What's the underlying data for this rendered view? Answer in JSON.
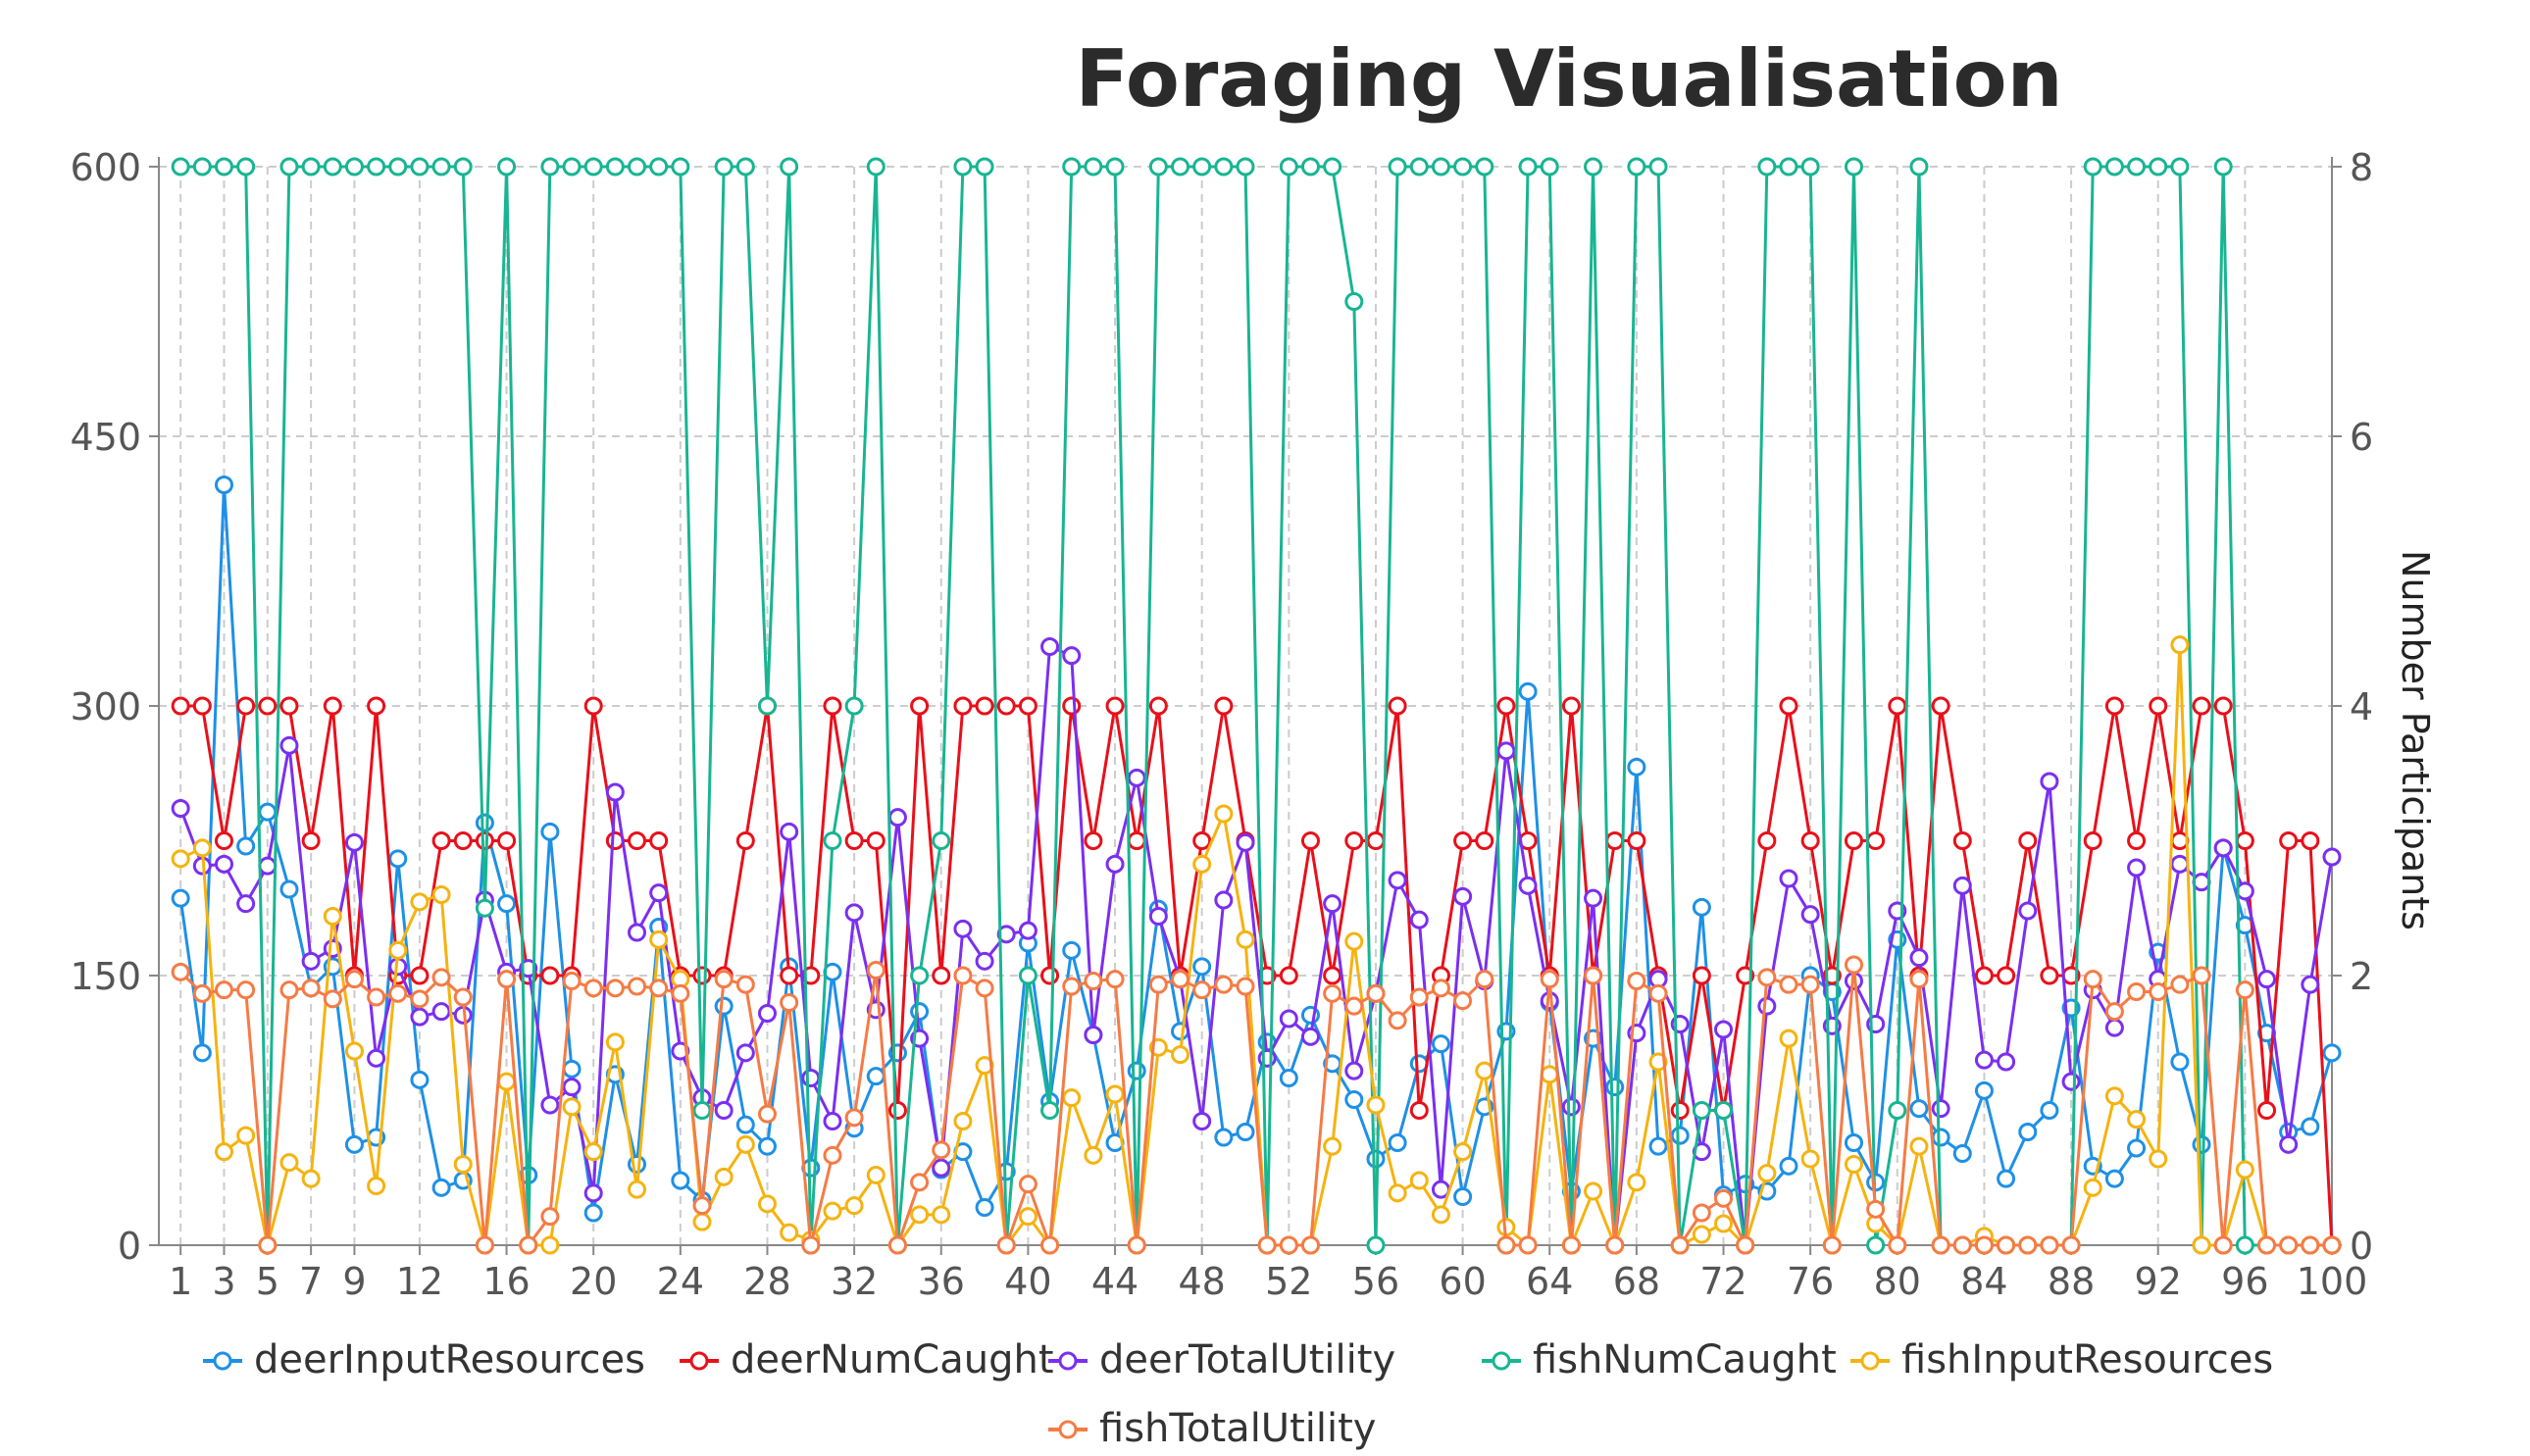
{
  "chart_data": {
    "type": "line",
    "title": "Foraging Visualisation",
    "xlabel": "",
    "ylabel_left": "",
    "ylabel_right": "Number Participants",
    "x": [
      1,
      2,
      3,
      4,
      5,
      6,
      7,
      8,
      9,
      10,
      11,
      12,
      13,
      14,
      15,
      16,
      17,
      18,
      19,
      20,
      21,
      22,
      23,
      24,
      25,
      26,
      27,
      28,
      29,
      30,
      31,
      32,
      33,
      34,
      35,
      36,
      37,
      38,
      39,
      40,
      41,
      42,
      43,
      44,
      45,
      46,
      47,
      48,
      49,
      50,
      51,
      52,
      53,
      54,
      55,
      56,
      57,
      58,
      59,
      60,
      61,
      62,
      63,
      64,
      65,
      66,
      67,
      68,
      69,
      70,
      71,
      72,
      73,
      74,
      75,
      76,
      77,
      78,
      79,
      80,
      81,
      82,
      83,
      84,
      85,
      86,
      87,
      88,
      89,
      90,
      91,
      92,
      93,
      94,
      95,
      96,
      97,
      98,
      99,
      100
    ],
    "x_tick_labels": [
      "1",
      "3",
      "5",
      "7",
      "9",
      "12",
      "16",
      "20",
      "24",
      "28",
      "32",
      "36",
      "40",
      "44",
      "48",
      "52",
      "56",
      "60",
      "64",
      "68",
      "72",
      "76",
      "80",
      "84",
      "88",
      "92",
      "96",
      "100"
    ],
    "x_tick_values": [
      1,
      3,
      5,
      7,
      9,
      12,
      16,
      20,
      24,
      28,
      32,
      36,
      40,
      44,
      48,
      52,
      56,
      60,
      64,
      68,
      72,
      76,
      80,
      84,
      88,
      92,
      96,
      100
    ],
    "xlim": [
      0,
      100
    ],
    "y_left": {
      "ticks": [
        0,
        150,
        300,
        450,
        600
      ],
      "ylim": [
        0,
        600
      ]
    },
    "y_right": {
      "ticks": [
        0,
        2,
        4,
        6,
        8
      ],
      "ylim": [
        0,
        8
      ]
    },
    "grid": true,
    "legend_position": "bottom",
    "series": [
      {
        "name": "deerInputResources",
        "color": "#1e90e6",
        "axis": "left",
        "values": [
          193,
          107,
          423,
          222,
          241,
          198,
          143,
          155,
          56,
          60,
          215,
          92,
          32,
          36,
          235,
          190,
          39,
          230,
          98,
          18,
          95,
          45,
          177,
          36,
          25,
          133,
          67,
          55,
          155,
          43,
          152,
          65,
          94,
          107,
          130,
          42,
          52,
          21,
          41,
          168,
          80,
          164,
          117,
          57,
          97,
          187,
          119,
          155,
          60,
          63,
          113,
          93,
          128,
          101,
          81,
          48,
          57,
          101,
          112,
          27,
          77,
          119,
          308,
          135,
          30,
          115,
          88,
          266,
          55,
          61,
          188,
          28,
          34,
          30,
          44,
          150,
          141,
          57,
          35,
          170,
          76,
          60,
          51,
          86,
          37,
          63,
          75,
          132,
          44,
          37,
          54,
          163,
          102,
          56,
          221,
          178,
          118,
          63,
          66,
          107
        ]
      },
      {
        "name": "deerNumCaught",
        "color": "#e8101a",
        "axis": "left",
        "values": [
          300,
          300,
          225,
          300,
          300,
          300,
          225,
          300,
          150,
          300,
          150,
          150,
          225,
          225,
          225,
          225,
          150,
          150,
          150,
          300,
          225,
          225,
          225,
          150,
          150,
          150,
          225,
          300,
          150,
          150,
          300,
          225,
          225,
          75,
          300,
          150,
          300,
          300,
          300,
          300,
          150,
          300,
          225,
          300,
          225,
          300,
          150,
          225,
          300,
          225,
          150,
          150,
          225,
          150,
          225,
          225,
          300,
          75,
          150,
          225,
          225,
          300,
          225,
          150,
          300,
          150,
          225,
          225,
          150,
          75,
          150,
          75,
          150,
          225,
          300,
          225,
          150,
          225,
          225,
          300,
          150,
          300,
          225,
          150,
          150,
          225,
          150,
          150,
          225,
          300,
          225,
          300,
          225,
          300,
          300,
          225,
          75,
          225,
          225,
          0
        ]
      },
      {
        "name": "deerTotalUtility",
        "color": "#7b2ff0",
        "axis": "left",
        "values": [
          243,
          211,
          212,
          190,
          211,
          278,
          158,
          165,
          224,
          104,
          155,
          127,
          130,
          128,
          192,
          152,
          154,
          78,
          88,
          29,
          252,
          174,
          196,
          108,
          82,
          75,
          107,
          129,
          230,
          93,
          69,
          185,
          131,
          238,
          115,
          43,
          176,
          158,
          173,
          175,
          333,
          328,
          117,
          212,
          260,
          183,
          148,
          69,
          192,
          224,
          104,
          126,
          116,
          190,
          97,
          140,
          203,
          181,
          31,
          194,
          147,
          275,
          200,
          136,
          77,
          193,
          0,
          118,
          148,
          123,
          52,
          120,
          0,
          133,
          204,
          184,
          122,
          147,
          123,
          186,
          160,
          76,
          200,
          103,
          102,
          186,
          258,
          91,
          142,
          121,
          210,
          148,
          212,
          202,
          221,
          197,
          148,
          56,
          145,
          216
        ]
      },
      {
        "name": "fishNumCaught",
        "color": "#18b592",
        "axis": "right",
        "values": [
          8,
          8,
          8,
          8,
          0,
          8,
          8,
          8,
          8,
          8,
          8,
          8,
          8,
          8,
          2.5,
          8,
          0,
          8,
          8,
          8,
          8,
          8,
          8,
          8,
          1,
          8,
          8,
          4,
          8,
          0,
          3,
          4,
          8,
          0,
          2,
          3,
          8,
          8,
          0,
          2,
          1,
          8,
          8,
          8,
          0,
          8,
          8,
          8,
          8,
          8,
          0,
          8,
          8,
          8,
          7,
          0,
          8,
          8,
          8,
          8,
          8,
          0,
          8,
          8,
          0,
          8,
          0,
          8,
          8,
          0,
          1,
          1,
          0,
          8,
          8,
          8,
          0,
          8,
          0,
          1,
          8,
          0,
          0,
          0,
          0,
          0,
          0,
          0,
          8,
          8,
          8,
          8,
          8,
          0,
          8,
          0,
          0,
          0,
          0,
          0
        ]
      },
      {
        "name": "fishInputResources",
        "color": "#f5b311",
        "axis": "left",
        "values": [
          215,
          221,
          52,
          61,
          0,
          46,
          37,
          183,
          108,
          33,
          164,
          191,
          195,
          45,
          0,
          91,
          0,
          0,
          77,
          52,
          113,
          31,
          170,
          148,
          13,
          38,
          56,
          23,
          7,
          3,
          19,
          22,
          39,
          0,
          17,
          17,
          69,
          100,
          0,
          16,
          0,
          82,
          50,
          84,
          0,
          110,
          106,
          212,
          240,
          170,
          0,
          0,
          0,
          55,
          169,
          78,
          29,
          36,
          17,
          52,
          97,
          10,
          0,
          95,
          0,
          30,
          0,
          35,
          102,
          0,
          6,
          12,
          0,
          40,
          115,
          48,
          0,
          45,
          12,
          0,
          55,
          0,
          0,
          5,
          0,
          0,
          0,
          0,
          32,
          83,
          70,
          48,
          334,
          0,
          0,
          42,
          0,
          0,
          0,
          0
        ]
      },
      {
        "name": "fishTotalUtility",
        "color": "#f57b45",
        "axis": "left",
        "values": [
          152,
          140,
          142,
          142,
          0,
          142,
          143,
          137,
          148,
          138,
          140,
          137,
          149,
          138,
          0,
          148,
          0,
          16,
          147,
          143,
          143,
          144,
          143,
          140,
          22,
          148,
          145,
          73,
          135,
          0,
          50,
          71,
          153,
          0,
          35,
          53,
          150,
          143,
          0,
          34,
          0,
          144,
          147,
          148,
          0,
          145,
          148,
          142,
          145,
          144,
          0,
          0,
          0,
          140,
          133,
          140,
          125,
          138,
          143,
          136,
          148,
          0,
          0,
          148,
          0,
          150,
          0,
          147,
          140,
          0,
          18,
          26,
          0,
          149,
          145,
          145,
          0,
          156,
          20,
          0,
          148,
          0,
          0,
          0,
          0,
          0,
          0,
          0,
          148,
          130,
          141,
          141,
          145,
          150,
          0,
          142,
          0,
          0,
          0,
          0
        ]
      }
    ]
  }
}
